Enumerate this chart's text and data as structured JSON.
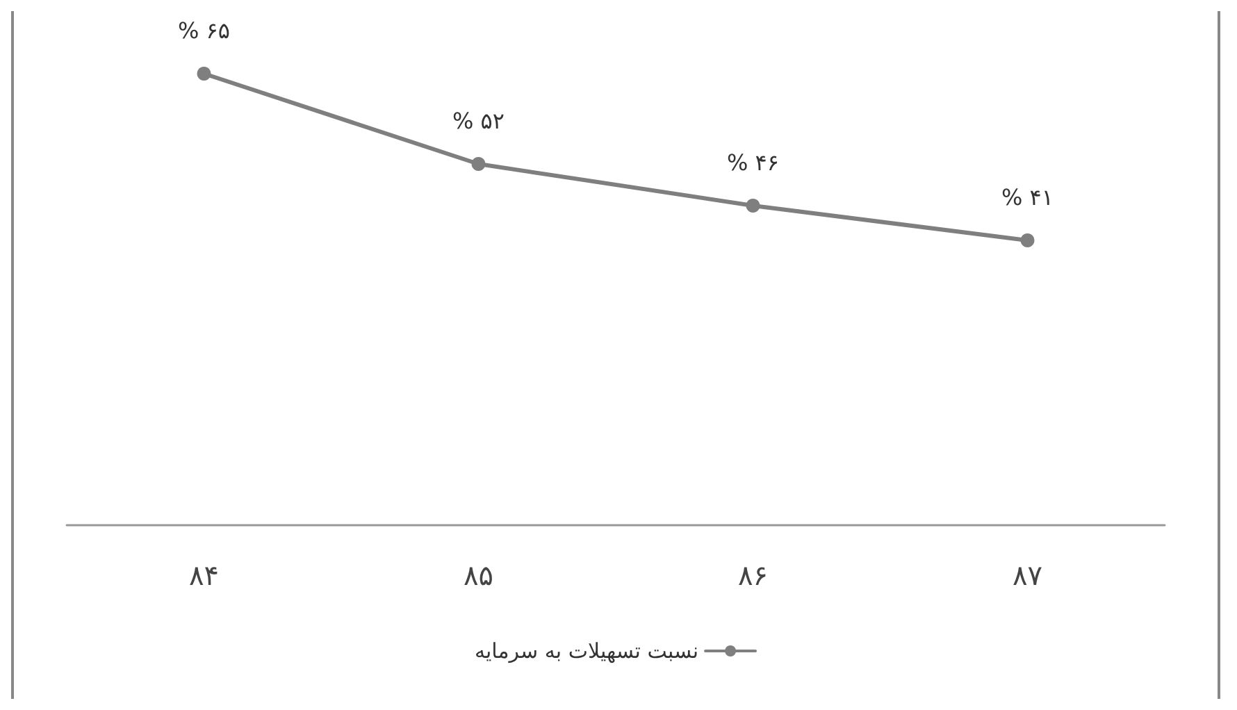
{
  "chart_data": {
    "type": "line",
    "categories": [
      "۸۴",
      "۸۵",
      "۸۶",
      "۸۷"
    ],
    "series": [
      {
        "name": "نسبت تسهیلات به سرمایه",
        "color": "#7f7f7f",
        "values": [
          65,
          52,
          46,
          41
        ],
        "value_labels": [
          "% ۶۵",
          "% ۵۲",
          "% ۴۶",
          "% ۴۱"
        ]
      }
    ],
    "marker": "circle",
    "line_style": "solid",
    "grid": false,
    "legend": "bottom"
  }
}
